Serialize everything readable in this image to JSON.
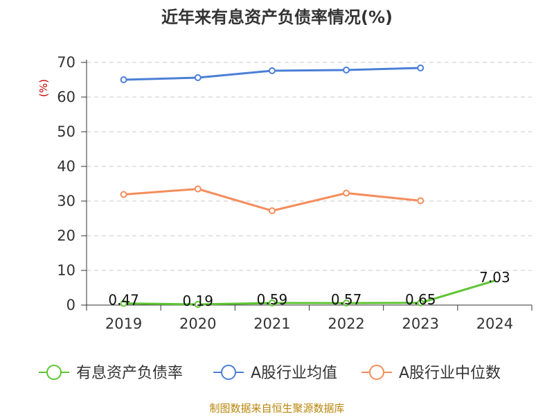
{
  "chart_data": {
    "type": "line",
    "title": "近年来有息资产负债率情况(%)",
    "ylabel": "(%)",
    "ylim": [
      0,
      70
    ],
    "yticks": [
      0,
      10,
      20,
      30,
      40,
      50,
      60,
      70
    ],
    "categories": [
      "2019",
      "2020",
      "2021",
      "2022",
      "2023",
      "2024"
    ],
    "grid": true,
    "legend_position": "bottom",
    "series": [
      {
        "name": "有息资产负债率",
        "color": "#5ec432",
        "values": [
          0.47,
          0.19,
          0.59,
          0.57,
          0.65,
          7.03
        ],
        "labels": [
          "0.47",
          "0.19",
          "0.59",
          "0.57",
          "0.65",
          "7.03"
        ]
      },
      {
        "name": "A股行业均值",
        "color": "#4a7fd6",
        "values": [
          65.0,
          65.6,
          67.6,
          67.8,
          68.4,
          null
        ]
      },
      {
        "name": "A股行业中位数",
        "color": "#f58d5c",
        "values": [
          31.9,
          33.5,
          27.2,
          32.3,
          30.1,
          null
        ]
      }
    ],
    "source": "制图数据来自恒生聚源数据库"
  }
}
